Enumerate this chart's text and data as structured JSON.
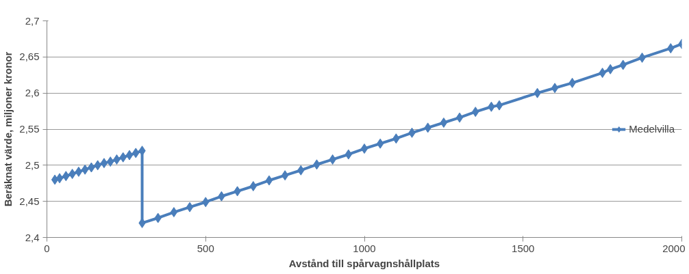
{
  "chart_data": {
    "type": "line",
    "xlabel": "Avstånd till spårvagnshållplats",
    "ylabel": "Beräknat värde, miljoner kronor",
    "series": [
      {
        "name": "Medelvilla",
        "color": "#4a7ebb",
        "x": [
          25,
          40,
          60,
          80,
          100,
          120,
          140,
          160,
          180,
          200,
          220,
          240,
          260,
          280,
          300,
          300,
          350,
          400,
          450,
          500,
          550,
          600,
          650,
          700,
          750,
          800,
          850,
          900,
          950,
          1000,
          1050,
          1100,
          1150,
          1200,
          1250,
          1300,
          1350,
          1400,
          1425,
          1545,
          1600,
          1655,
          1750,
          1775,
          1815,
          1875,
          1965,
          2000
        ],
        "values": [
          2.48,
          2.482,
          2.485,
          2.488,
          2.491,
          2.494,
          2.497,
          2.5,
          2.503,
          2.505,
          2.508,
          2.511,
          2.514,
          2.517,
          2.52,
          2.42,
          2.427,
          2.435,
          2.442,
          2.449,
          2.457,
          2.464,
          2.471,
          2.479,
          2.486,
          2.493,
          2.501,
          2.508,
          2.515,
          2.523,
          2.53,
          2.537,
          2.545,
          2.552,
          2.559,
          2.566,
          2.574,
          2.581,
          2.583,
          2.6,
          2.607,
          2.614,
          2.628,
          2.633,
          2.639,
          2.649,
          2.662,
          2.668
        ]
      }
    ],
    "xlim": [
      0,
      2000
    ],
    "xticks": [
      0,
      500,
      1000,
      1500,
      2000
    ],
    "ylim": [
      2.4,
      2.7
    ],
    "yticks": [
      {
        "value": 2.4,
        "label": "2,4"
      },
      {
        "value": 2.45,
        "label": "2,45"
      },
      {
        "value": 2.5,
        "label": "2,5"
      },
      {
        "value": 2.55,
        "label": "2,55"
      },
      {
        "value": 2.6,
        "label": "2,6"
      },
      {
        "value": 2.65,
        "label": "2,65"
      },
      {
        "value": 2.7,
        "label": "2,7"
      }
    ],
    "grid": "y",
    "legend": "right",
    "marker": "diamond",
    "line_style": "solid"
  }
}
